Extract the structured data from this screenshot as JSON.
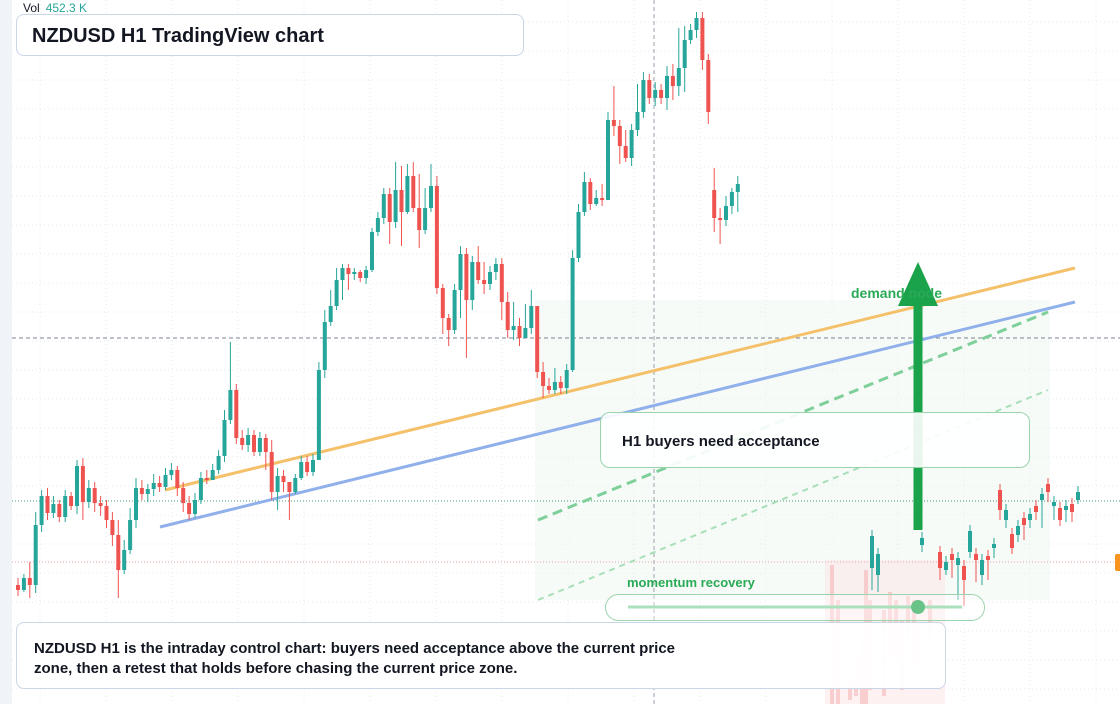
{
  "header": {
    "title": "NZDUSD H1 TradingView chart",
    "volume_label": "Vol",
    "volume_value": "452.3 K"
  },
  "annotations": {
    "callout": "H1 buyers need acceptance",
    "demand_label": "demand node",
    "momentum_label": "momentum recovery",
    "note": "NZDUSD H1 is the intraday control chart: buyers need acceptance above the current price zone, then a retest that holds before chasing the current price zone."
  },
  "colors": {
    "bull": "#26a69a",
    "bear": "#ef5350",
    "trend_orange": "#f5c06a",
    "trend_blue": "#8fb0ea",
    "signal_green": "#1aa34a",
    "marker_orange": "#f7931e"
  },
  "chart_data": {
    "type": "candlestick",
    "timeframe": "H1",
    "symbol": "NZDUSD",
    "y_axis": "price (unlabelled)",
    "candles_ohlc_screen_relative": [
      [
        585,
        590,
        578,
        596
      ],
      [
        590,
        578,
        574,
        592
      ],
      [
        578,
        585,
        562,
        598
      ],
      [
        585,
        525,
        512,
        593
      ],
      [
        525,
        496,
        490,
        532
      ],
      [
        496,
        513,
        488,
        520
      ],
      [
        513,
        504,
        496,
        518
      ],
      [
        504,
        517,
        500,
        522
      ],
      [
        517,
        496,
        490,
        522
      ],
      [
        496,
        506,
        492,
        510
      ],
      [
        506,
        466,
        460,
        514
      ],
      [
        466,
        502,
        458,
        520
      ],
      [
        502,
        488,
        480,
        508
      ],
      [
        488,
        503,
        482,
        512
      ],
      [
        503,
        506,
        496,
        516
      ],
      [
        506,
        520,
        500,
        528
      ],
      [
        520,
        535,
        512,
        546
      ],
      [
        535,
        570,
        520,
        598
      ],
      [
        570,
        550,
        540,
        574
      ],
      [
        550,
        520,
        508,
        554
      ],
      [
        520,
        488,
        478,
        528
      ],
      [
        488,
        494,
        480,
        500
      ],
      [
        494,
        489,
        484,
        502
      ],
      [
        489,
        483,
        474,
        496
      ],
      [
        483,
        487,
        476,
        492
      ],
      [
        487,
        475,
        468,
        490
      ],
      [
        475,
        470,
        463,
        480
      ],
      [
        470,
        488,
        466,
        496
      ],
      [
        488,
        503,
        482,
        512
      ],
      [
        503,
        514,
        496,
        520
      ],
      [
        514,
        500,
        493,
        518
      ],
      [
        500,
        478,
        472,
        504
      ],
      [
        478,
        480,
        470,
        484
      ],
      [
        480,
        470,
        464,
        476
      ],
      [
        470,
        456,
        450,
        474
      ],
      [
        456,
        420,
        410,
        462
      ],
      [
        420,
        390,
        342,
        424
      ],
      [
        390,
        438,
        384,
        444
      ],
      [
        438,
        445,
        430,
        450
      ],
      [
        445,
        435,
        428,
        452
      ],
      [
        435,
        452,
        430,
        456
      ],
      [
        452,
        438,
        432,
        456
      ],
      [
        438,
        452,
        434,
        470
      ],
      [
        452,
        492,
        440,
        500
      ],
      [
        492,
        476,
        468,
        510
      ],
      [
        476,
        482,
        470,
        492
      ],
      [
        482,
        492,
        486,
        520
      ],
      [
        492,
        478,
        474,
        494
      ],
      [
        478,
        462,
        456,
        480
      ],
      [
        462,
        472,
        456,
        476
      ],
      [
        472,
        460,
        454,
        476
      ],
      [
        460,
        370,
        362,
        432
      ],
      [
        370,
        322,
        310,
        378
      ],
      [
        322,
        306,
        290,
        326
      ],
      [
        306,
        280,
        268,
        310
      ],
      [
        280,
        268,
        264,
        300
      ],
      [
        268,
        274,
        264,
        290
      ],
      [
        274,
        272,
        268,
        280
      ],
      [
        272,
        278,
        270,
        282
      ],
      [
        278,
        270,
        266,
        284
      ],
      [
        270,
        232,
        228,
        272
      ],
      [
        232,
        218,
        212,
        236
      ],
      [
        218,
        194,
        188,
        224
      ],
      [
        194,
        222,
        188,
        244
      ],
      [
        222,
        190,
        162,
        228
      ],
      [
        190,
        212,
        166,
        246
      ],
      [
        212,
        176,
        164,
        214
      ],
      [
        176,
        208,
        162,
        212
      ],
      [
        208,
        230,
        174,
        248
      ],
      [
        230,
        208,
        188,
        234
      ],
      [
        208,
        186,
        164,
        212
      ],
      [
        186,
        288,
        176,
        294
      ],
      [
        288,
        318,
        284,
        334
      ],
      [
        318,
        330,
        314,
        346
      ],
      [
        330,
        290,
        284,
        334
      ],
      [
        290,
        254,
        246,
        318
      ],
      [
        254,
        300,
        248,
        358
      ],
      [
        300,
        262,
        256,
        310
      ],
      [
        262,
        280,
        246,
        284
      ],
      [
        280,
        284,
        262,
        294
      ],
      [
        284,
        272,
        266,
        290
      ],
      [
        272,
        264,
        258,
        280
      ],
      [
        264,
        302,
        258,
        320
      ],
      [
        302,
        330,
        292,
        338
      ],
      [
        330,
        326,
        302,
        340
      ],
      [
        326,
        338,
        318,
        346
      ],
      [
        338,
        328,
        304,
        334
      ],
      [
        328,
        306,
        290,
        334
      ],
      [
        306,
        372,
        344,
        378
      ],
      [
        372,
        386,
        362,
        398
      ],
      [
        386,
        390,
        378,
        394
      ],
      [
        390,
        382,
        368,
        394
      ],
      [
        382,
        388,
        376,
        394
      ],
      [
        388,
        370,
        364,
        394
      ],
      [
        370,
        258,
        250,
        372
      ],
      [
        258,
        212,
        204,
        262
      ],
      [
        212,
        182,
        172,
        216
      ],
      [
        182,
        204,
        178,
        210
      ],
      [
        204,
        198,
        190,
        206
      ],
      [
        198,
        200,
        184,
        206
      ],
      [
        200,
        120,
        112,
        166
      ],
      [
        120,
        126,
        86,
        136
      ],
      [
        126,
        146,
        120,
        164
      ],
      [
        146,
        158,
        130,
        162
      ],
      [
        158,
        130,
        124,
        166
      ],
      [
        130,
        112,
        84,
        136
      ],
      [
        112,
        80,
        72,
        118
      ],
      [
        80,
        98,
        74,
        104
      ],
      [
        98,
        90,
        82,
        106
      ],
      [
        90,
        98,
        84,
        104
      ],
      [
        98,
        76,
        66,
        110
      ],
      [
        76,
        86,
        64,
        100
      ],
      [
        86,
        68,
        28,
        96
      ],
      [
        68,
        40,
        26,
        92
      ],
      [
        40,
        30,
        24,
        44
      ],
      [
        30,
        18,
        12,
        38
      ],
      [
        18,
        60,
        12,
        70
      ],
      [
        60,
        112,
        54,
        124
      ],
      [
        190,
        218,
        168,
        232
      ],
      [
        218,
        220,
        208,
        244
      ],
      [
        220,
        206,
        196,
        226
      ],
      [
        206,
        192,
        188,
        214
      ],
      [
        192,
        184,
        176,
        212
      ]
    ],
    "overlays": [
      "rising orange trendline",
      "rising blue trendline",
      "dashed green channel lines",
      "green upward arrow at demand node",
      "horizontal dashed price lines"
    ]
  }
}
